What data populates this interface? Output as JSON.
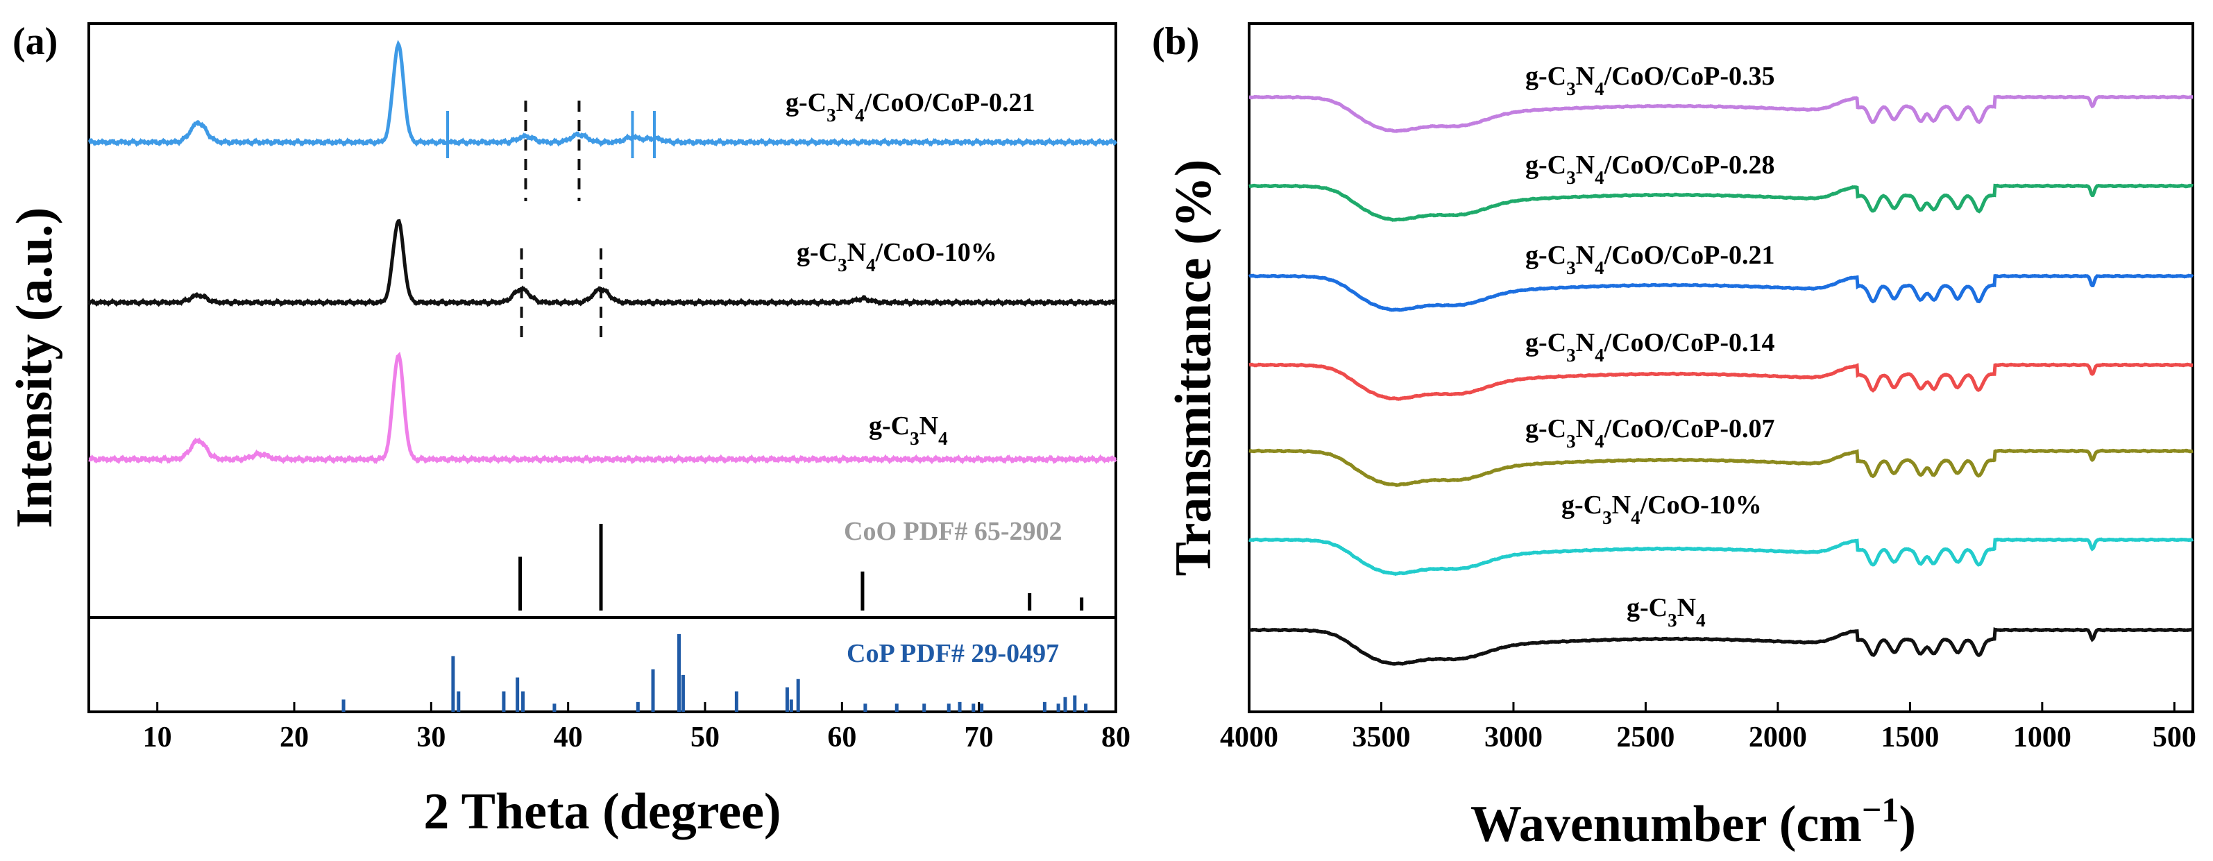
{
  "chart_data": [
    {
      "panel": "(a)",
      "type": "line",
      "xlabel": "2 Theta (degree)",
      "ylabel": "Intensity (a.u.)",
      "xlim": [
        5,
        80
      ],
      "xticks": [
        10,
        20,
        30,
        40,
        50,
        60,
        70,
        80
      ],
      "series": [
        {
          "name": "g-C3N4/CoO/CoP-0.21",
          "label_pre": "g-C",
          "label_sub1": "3",
          "label_mid": "N",
          "label_sub2": "4",
          "label_post": "/CoO/CoP-0.21",
          "color": "#3e9ae6",
          "peaks": [
            [
              13,
              0.2
            ],
            [
              27.6,
              1.0
            ],
            [
              36.9,
              0.06
            ],
            [
              40.8,
              0.08
            ],
            [
              44.7,
              0.05
            ],
            [
              46.3,
              0.04
            ]
          ]
        },
        {
          "name": "g-C3N4/CoO-10%",
          "label_pre": "g-C",
          "label_sub1": "3",
          "label_mid": "N",
          "label_sub2": "4",
          "label_post": "/CoO-10%",
          "color": "#111111",
          "peaks": [
            [
              13,
              0.08
            ],
            [
              27.6,
              0.9
            ],
            [
              36.6,
              0.15
            ],
            [
              42.4,
              0.15
            ],
            [
              61.5,
              0.04
            ]
          ]
        },
        {
          "name": "g-C3N4",
          "label_pre": "g-C",
          "label_sub1": "3",
          "label_mid": "N",
          "label_sub2": "4",
          "label_post": "",
          "color": "#ef7fe9",
          "peaks": [
            [
              13,
              0.18
            ],
            [
              17.5,
              0.05
            ],
            [
              27.6,
              1.0
            ]
          ]
        }
      ],
      "references": [
        {
          "name": "CoO PDF# 65-2902",
          "color": "#000000",
          "label_color": "#9a9a9a",
          "lines": [
            [
              36.5,
              0.62
            ],
            [
              42.4,
              1.0
            ],
            [
              61.5,
              0.45
            ],
            [
              73.7,
              0.2
            ],
            [
              77.5,
              0.15
            ]
          ]
        },
        {
          "name": "CoP PDF# 29-0497",
          "color": "#1f5aa6",
          "label_color": "#1f5aa6",
          "lines": [
            [
              23.6,
              0.15
            ],
            [
              31.6,
              0.68
            ],
            [
              32.0,
              0.25
            ],
            [
              35.3,
              0.25
            ],
            [
              36.3,
              0.42
            ],
            [
              36.7,
              0.25
            ],
            [
              39.0,
              0.1
            ],
            [
              45.1,
              0.12
            ],
            [
              46.2,
              0.52
            ],
            [
              48.1,
              0.95
            ],
            [
              48.4,
              0.45
            ],
            [
              52.3,
              0.25
            ],
            [
              56.0,
              0.3
            ],
            [
              56.3,
              0.15
            ],
            [
              56.8,
              0.4
            ],
            [
              61.7,
              0.1
            ],
            [
              64.0,
              0.1
            ],
            [
              66.0,
              0.1
            ],
            [
              67.8,
              0.1
            ],
            [
              68.6,
              0.12
            ],
            [
              69.6,
              0.1
            ],
            [
              70.2,
              0.1
            ],
            [
              74.8,
              0.12
            ],
            [
              75.8,
              0.1
            ],
            [
              76.3,
              0.18
            ],
            [
              77.0,
              0.2
            ],
            [
              77.8,
              0.1
            ]
          ]
        }
      ],
      "markers": [
        {
          "series": 0,
          "x": [
            31.2,
            44.7,
            46.3
          ],
          "color": "#3e9ae6"
        },
        {
          "series": 0,
          "x": [
            36.9,
            40.8
          ],
          "color": "#111111"
        },
        {
          "series": 1,
          "x": [
            36.6,
            42.4
          ],
          "color": "#111111"
        }
      ]
    },
    {
      "panel": "(b)",
      "type": "line",
      "xlabel_pre": "Wavenumber (cm",
      "xlabel_sup": "−1",
      "xlabel_post": ")",
      "ylabel": "Transmittance (%)",
      "xlim": [
        4000,
        430
      ],
      "xticks": [
        4000,
        3500,
        3000,
        2500,
        2000,
        1500,
        1000,
        500
      ],
      "series": [
        {
          "name": "g-C3N4/CoO/CoP-0.35",
          "label_pre": "g-C",
          "label_sub1": "3",
          "label_mid": "N",
          "label_sub2": "4",
          "label_post": "/CoO/CoP-0.35",
          "color": "#c27fe0"
        },
        {
          "name": "g-C3N4/CoO/CoP-0.28",
          "label_pre": "g-C",
          "label_sub1": "3",
          "label_mid": "N",
          "label_sub2": "4",
          "label_post": "/CoO/CoP-0.28",
          "color": "#1faa6b"
        },
        {
          "name": "g-C3N4/CoO/CoP-0.21",
          "label_pre": "g-C",
          "label_sub1": "3",
          "label_mid": "N",
          "label_sub2": "4",
          "label_post": "/CoO/CoP-0.21",
          "color": "#1c6fe0"
        },
        {
          "name": "g-C3N4/CoO/CoP-0.14",
          "label_pre": "g-C",
          "label_sub1": "3",
          "label_mid": "N",
          "label_sub2": "4",
          "label_post": "/CoO/CoP-0.14",
          "color": "#ee4b4b"
        },
        {
          "name": "g-C3N4/CoO/CoP-0.07",
          "label_pre": "g-C",
          "label_sub1": "3",
          "label_mid": "N",
          "label_sub2": "4",
          "label_post": "/CoO/CoP-0.07",
          "color": "#8c8a1e"
        },
        {
          "name": "g-C3N4/CoO-10%",
          "label_pre": "g-C",
          "label_sub1": "3",
          "label_mid": "N",
          "label_sub2": "4",
          "label_post": "/CoO-10%",
          "color": "#22cccc"
        },
        {
          "name": "g-C3N4",
          "label_pre": "g-C",
          "label_sub1": "3",
          "label_mid": "N",
          "label_sub2": "4",
          "label_post": "",
          "color": "#111111"
        }
      ],
      "bands": [
        [
          3450,
          0.55
        ],
        [
          3200,
          0.45
        ],
        [
          1640,
          0.6
        ],
        [
          1560,
          0.5
        ],
        [
          1460,
          0.55
        ],
        [
          1410,
          0.55
        ],
        [
          1320,
          0.5
        ],
        [
          1240,
          0.6
        ],
        [
          810,
          0.35
        ]
      ]
    }
  ]
}
